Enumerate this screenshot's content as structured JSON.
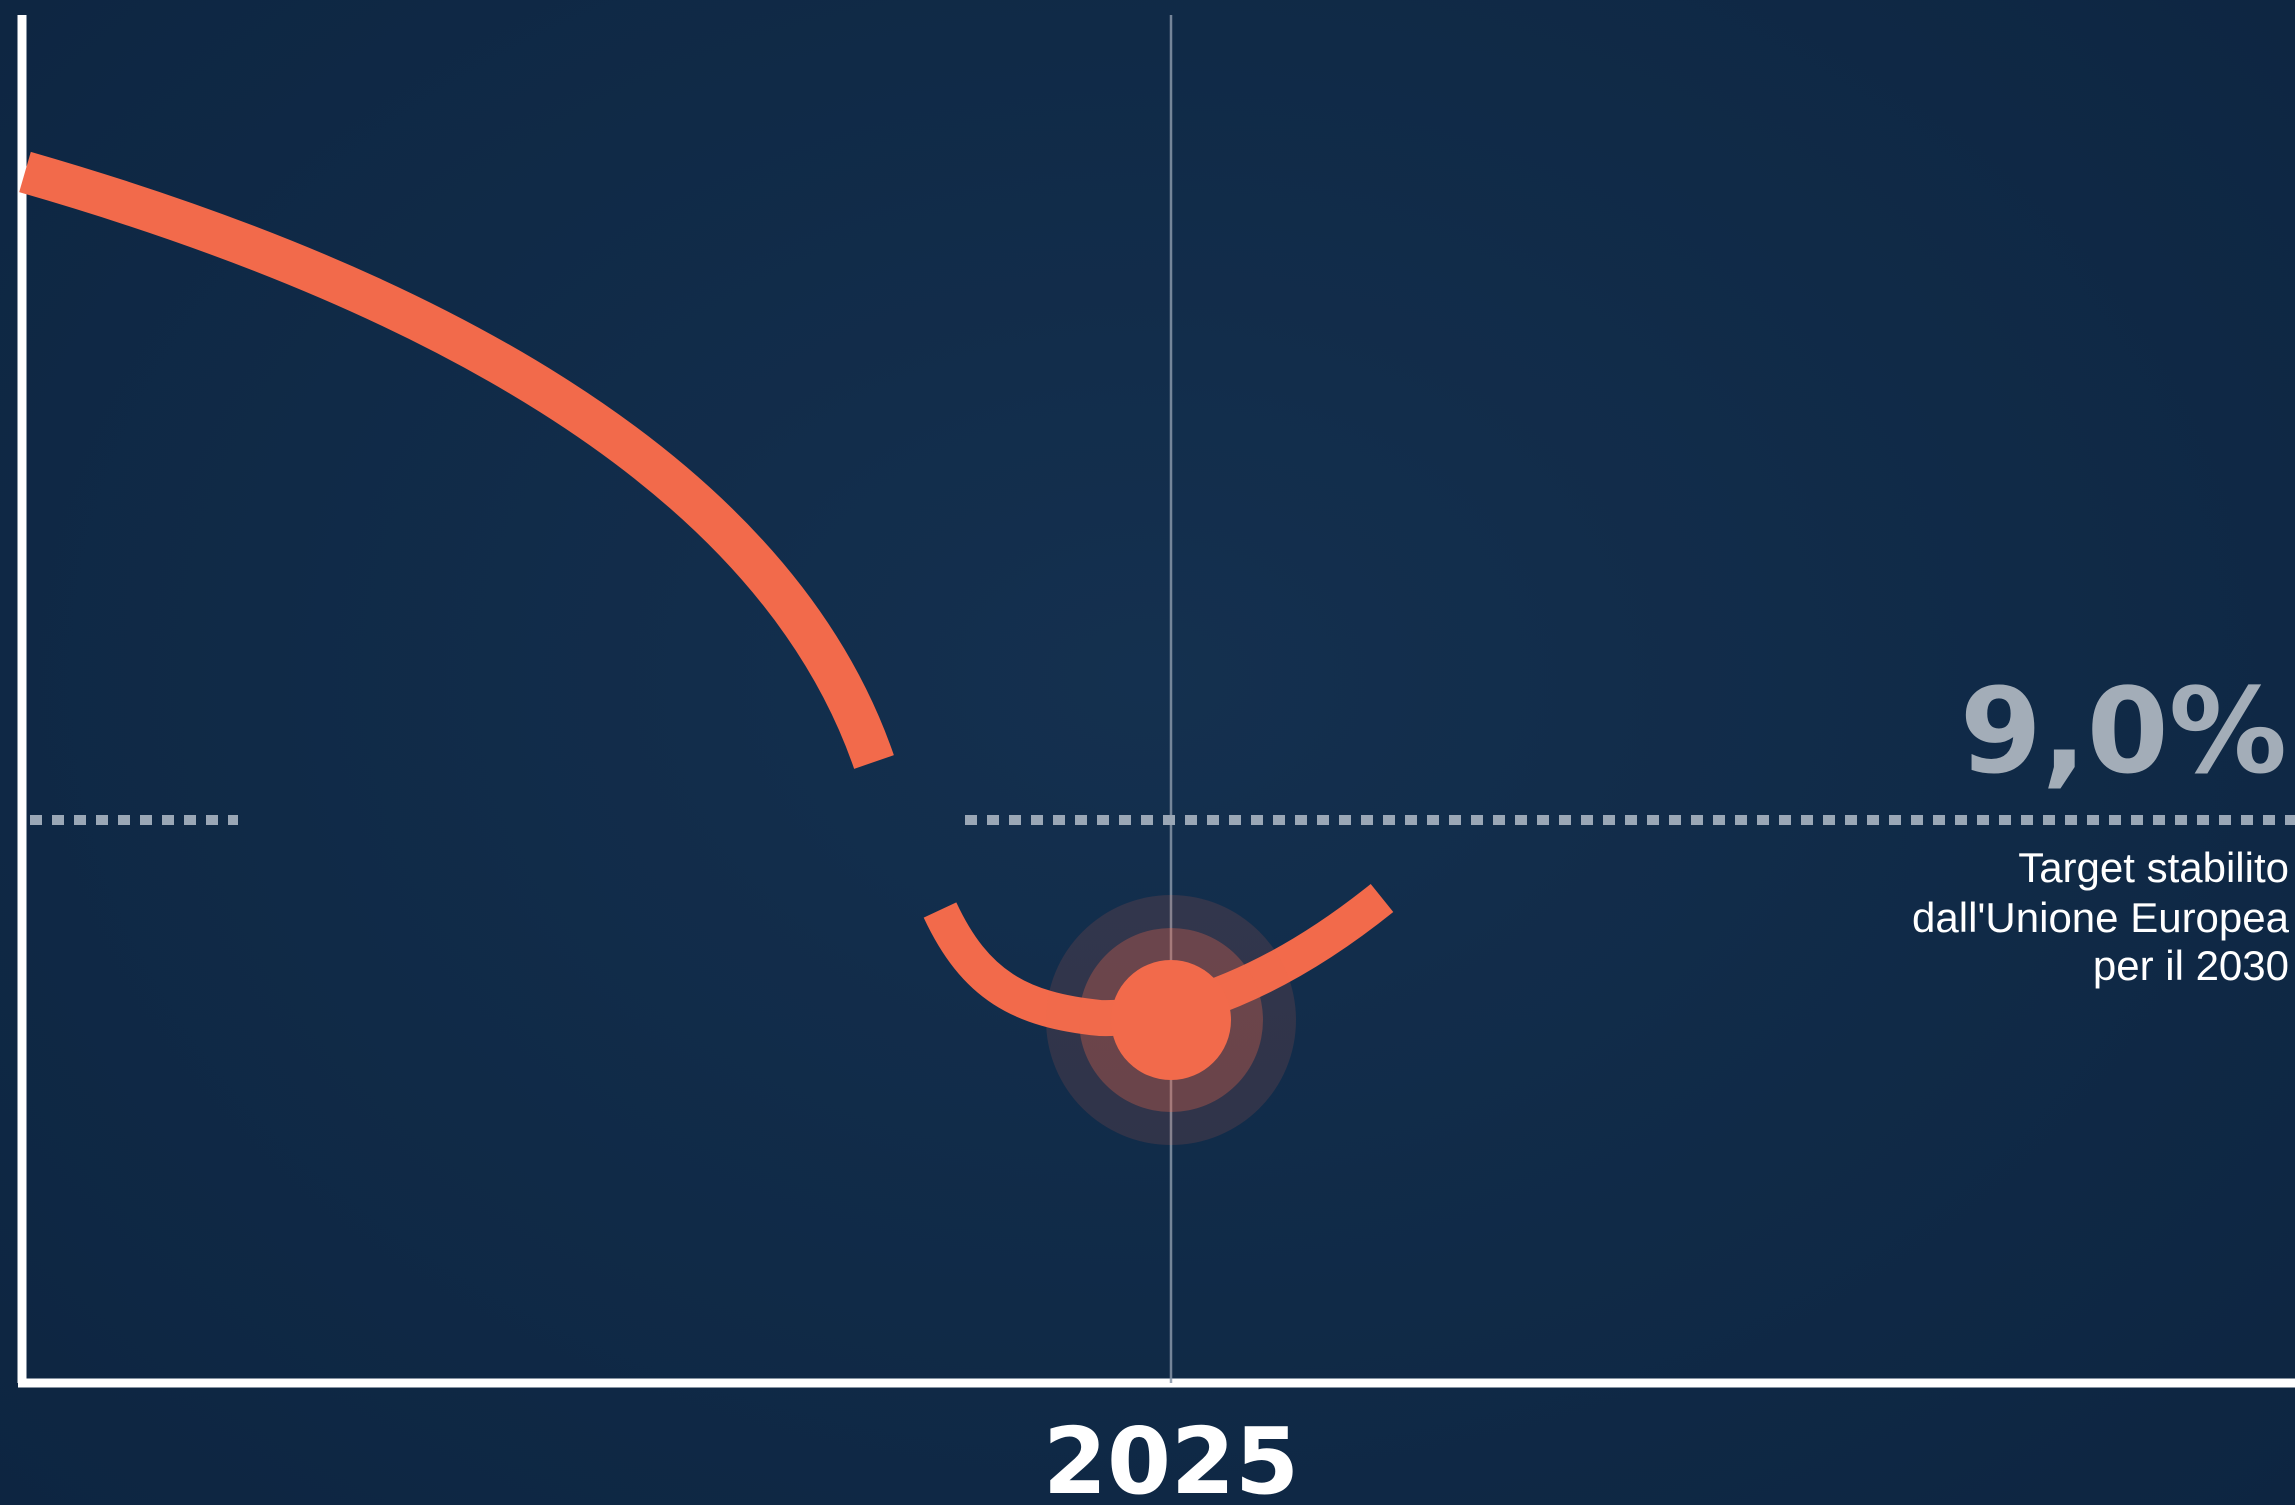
{
  "chart_data": {
    "type": "line",
    "title": "",
    "xlabel": "",
    "ylabel": "",
    "x_ticks": [
      "2025"
    ],
    "highlight_point": {
      "x": "2025"
    },
    "reference_line": {
      "value": "9,0%",
      "style": "dotted",
      "caption_lines": [
        "Target stabilito",
        "dall'Unione Europea",
        "per il 2030"
      ]
    },
    "series": [
      {
        "color": "#f26a4b",
        "trend": "decreasing then rising"
      }
    ],
    "grid": false,
    "legend": "none"
  },
  "colors": {
    "background": "#112b48",
    "line": "#f26a4b",
    "axis": "#ffffff",
    "reference": "#a3adb8"
  }
}
